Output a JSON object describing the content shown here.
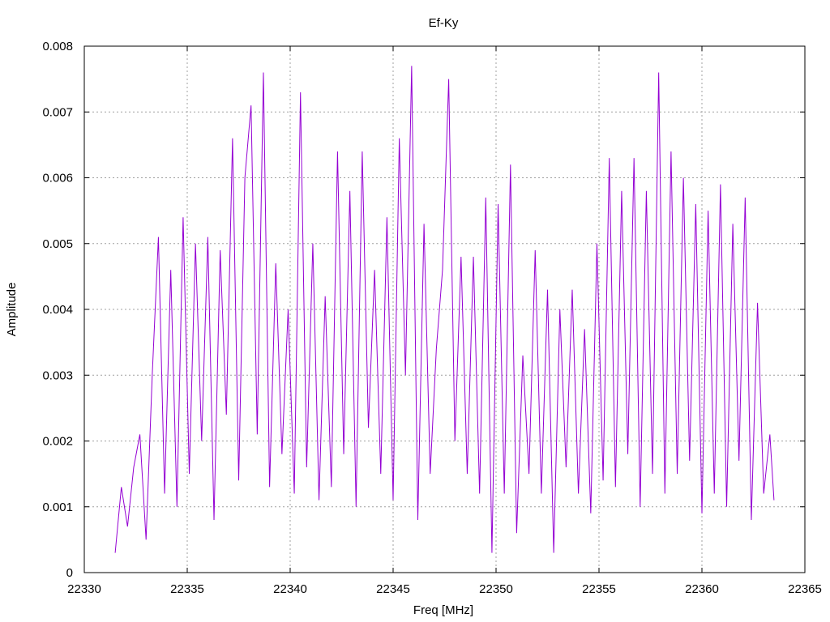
{
  "chart_data": {
    "type": "line",
    "title": "Ef-Ky",
    "xlabel": "Freq [MHz]",
    "ylabel": "Amplitude",
    "xlim": [
      22330,
      22365
    ],
    "ylim": [
      0,
      0.008
    ],
    "x_ticks": [
      "22330",
      "22335",
      "22340",
      "22345",
      "22350",
      "22355",
      "22360",
      "22365"
    ],
    "y_ticks": [
      "0",
      "0.001",
      "0.002",
      "0.003",
      "0.004",
      "0.005",
      "0.006",
      "0.007",
      "0.008"
    ],
    "grid": true,
    "series_color": "#9400d3",
    "series": [
      {
        "x": [
          22331.5,
          22331.8,
          22332.1,
          22332.4,
          22332.7,
          22333.0,
          22333.3,
          22333.6,
          22333.9,
          22334.2,
          22334.5,
          22334.8,
          22335.1,
          22335.4,
          22335.7,
          22336.0,
          22336.3,
          22336.6,
          22336.9,
          22337.2,
          22337.5,
          22337.8,
          22338.1,
          22338.4,
          22338.7,
          22339.0,
          22339.3,
          22339.6,
          22339.9,
          22340.2,
          22340.5,
          22340.8,
          22341.1,
          22341.4,
          22341.7,
          22342.0,
          22342.3,
          22342.6,
          22342.9,
          22343.2,
          22343.5,
          22343.8,
          22344.1,
          22344.4,
          22344.7,
          22345.0,
          22345.3,
          22345.6,
          22345.9,
          22346.2,
          22346.5,
          22346.8,
          22347.1,
          22347.4,
          22347.7,
          22348.0,
          22348.3,
          22348.6,
          22348.9,
          22349.2,
          22349.5,
          22349.8,
          22350.1,
          22350.4,
          22350.7,
          22351.0,
          22351.3,
          22351.6,
          22351.9,
          22352.2,
          22352.5,
          22352.8,
          22353.1,
          22353.4,
          22353.7,
          22354.0,
          22354.3,
          22354.6,
          22354.9,
          22355.2,
          22355.5,
          22355.8,
          22356.1,
          22356.4,
          22356.7,
          22357.0,
          22357.3,
          22357.6,
          22357.9,
          22358.2,
          22358.5,
          22358.8,
          22359.1,
          22359.4,
          22359.7,
          22360.0,
          22360.3,
          22360.6,
          22360.9,
          22361.2,
          22361.5,
          22361.8,
          22362.1,
          22362.4,
          22362.7,
          22363.0,
          22363.3,
          22363.5
        ],
        "y": [
          0.0003,
          0.0013,
          0.0007,
          0.0016,
          0.0021,
          0.0005,
          0.003,
          0.0051,
          0.0012,
          0.0046,
          0.001,
          0.0054,
          0.0015,
          0.005,
          0.002,
          0.0051,
          0.0008,
          0.0049,
          0.0024,
          0.0066,
          0.0014,
          0.006,
          0.0071,
          0.0021,
          0.0076,
          0.0013,
          0.0047,
          0.0018,
          0.004,
          0.0012,
          0.0073,
          0.0016,
          0.005,
          0.0011,
          0.0042,
          0.0013,
          0.0064,
          0.0018,
          0.0058,
          0.001,
          0.0064,
          0.0022,
          0.0046,
          0.0015,
          0.0054,
          0.0011,
          0.0066,
          0.003,
          0.0077,
          0.0008,
          0.0053,
          0.0015,
          0.0034,
          0.0046,
          0.0075,
          0.002,
          0.0048,
          0.0015,
          0.0048,
          0.0012,
          0.0057,
          0.0003,
          0.0056,
          0.0012,
          0.0062,
          0.0006,
          0.0033,
          0.0015,
          0.0049,
          0.0012,
          0.0043,
          0.0003,
          0.004,
          0.0016,
          0.0043,
          0.0012,
          0.0037,
          0.0009,
          0.005,
          0.0014,
          0.0063,
          0.0013,
          0.0058,
          0.0018,
          0.0063,
          0.001,
          0.0058,
          0.0015,
          0.0076,
          0.0012,
          0.0064,
          0.0015,
          0.006,
          0.0017,
          0.0056,
          0.0009,
          0.0055,
          0.0012,
          0.0059,
          0.001,
          0.0053,
          0.0017,
          0.0057,
          0.0008,
          0.0041,
          0.0012,
          0.0021,
          0.0011
        ]
      }
    ]
  }
}
